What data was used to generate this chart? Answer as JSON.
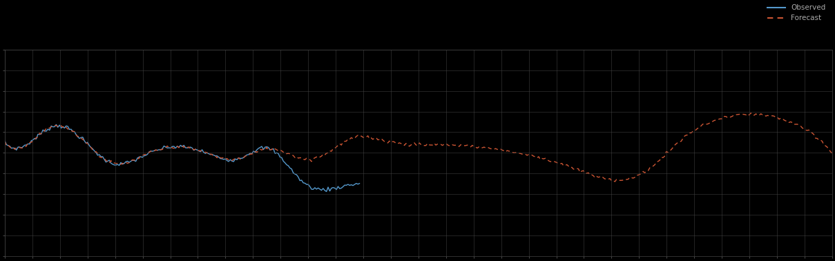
{
  "background_color": "#000000",
  "plot_bg_color": "#000000",
  "grid_color": "#444444",
  "text_color": "#aaaaaa",
  "line1_color": "#5599cc",
  "line2_color": "#cc5533",
  "legend1": "Observed",
  "legend2": "Forecast",
  "legend_fontsize": 7.5,
  "figsize": [
    12.09,
    3.78
  ],
  "dpi": 100,
  "ylim_min": 0,
  "ylim_max": 1,
  "n_cols_grid": 30,
  "n_rows_grid": 10
}
